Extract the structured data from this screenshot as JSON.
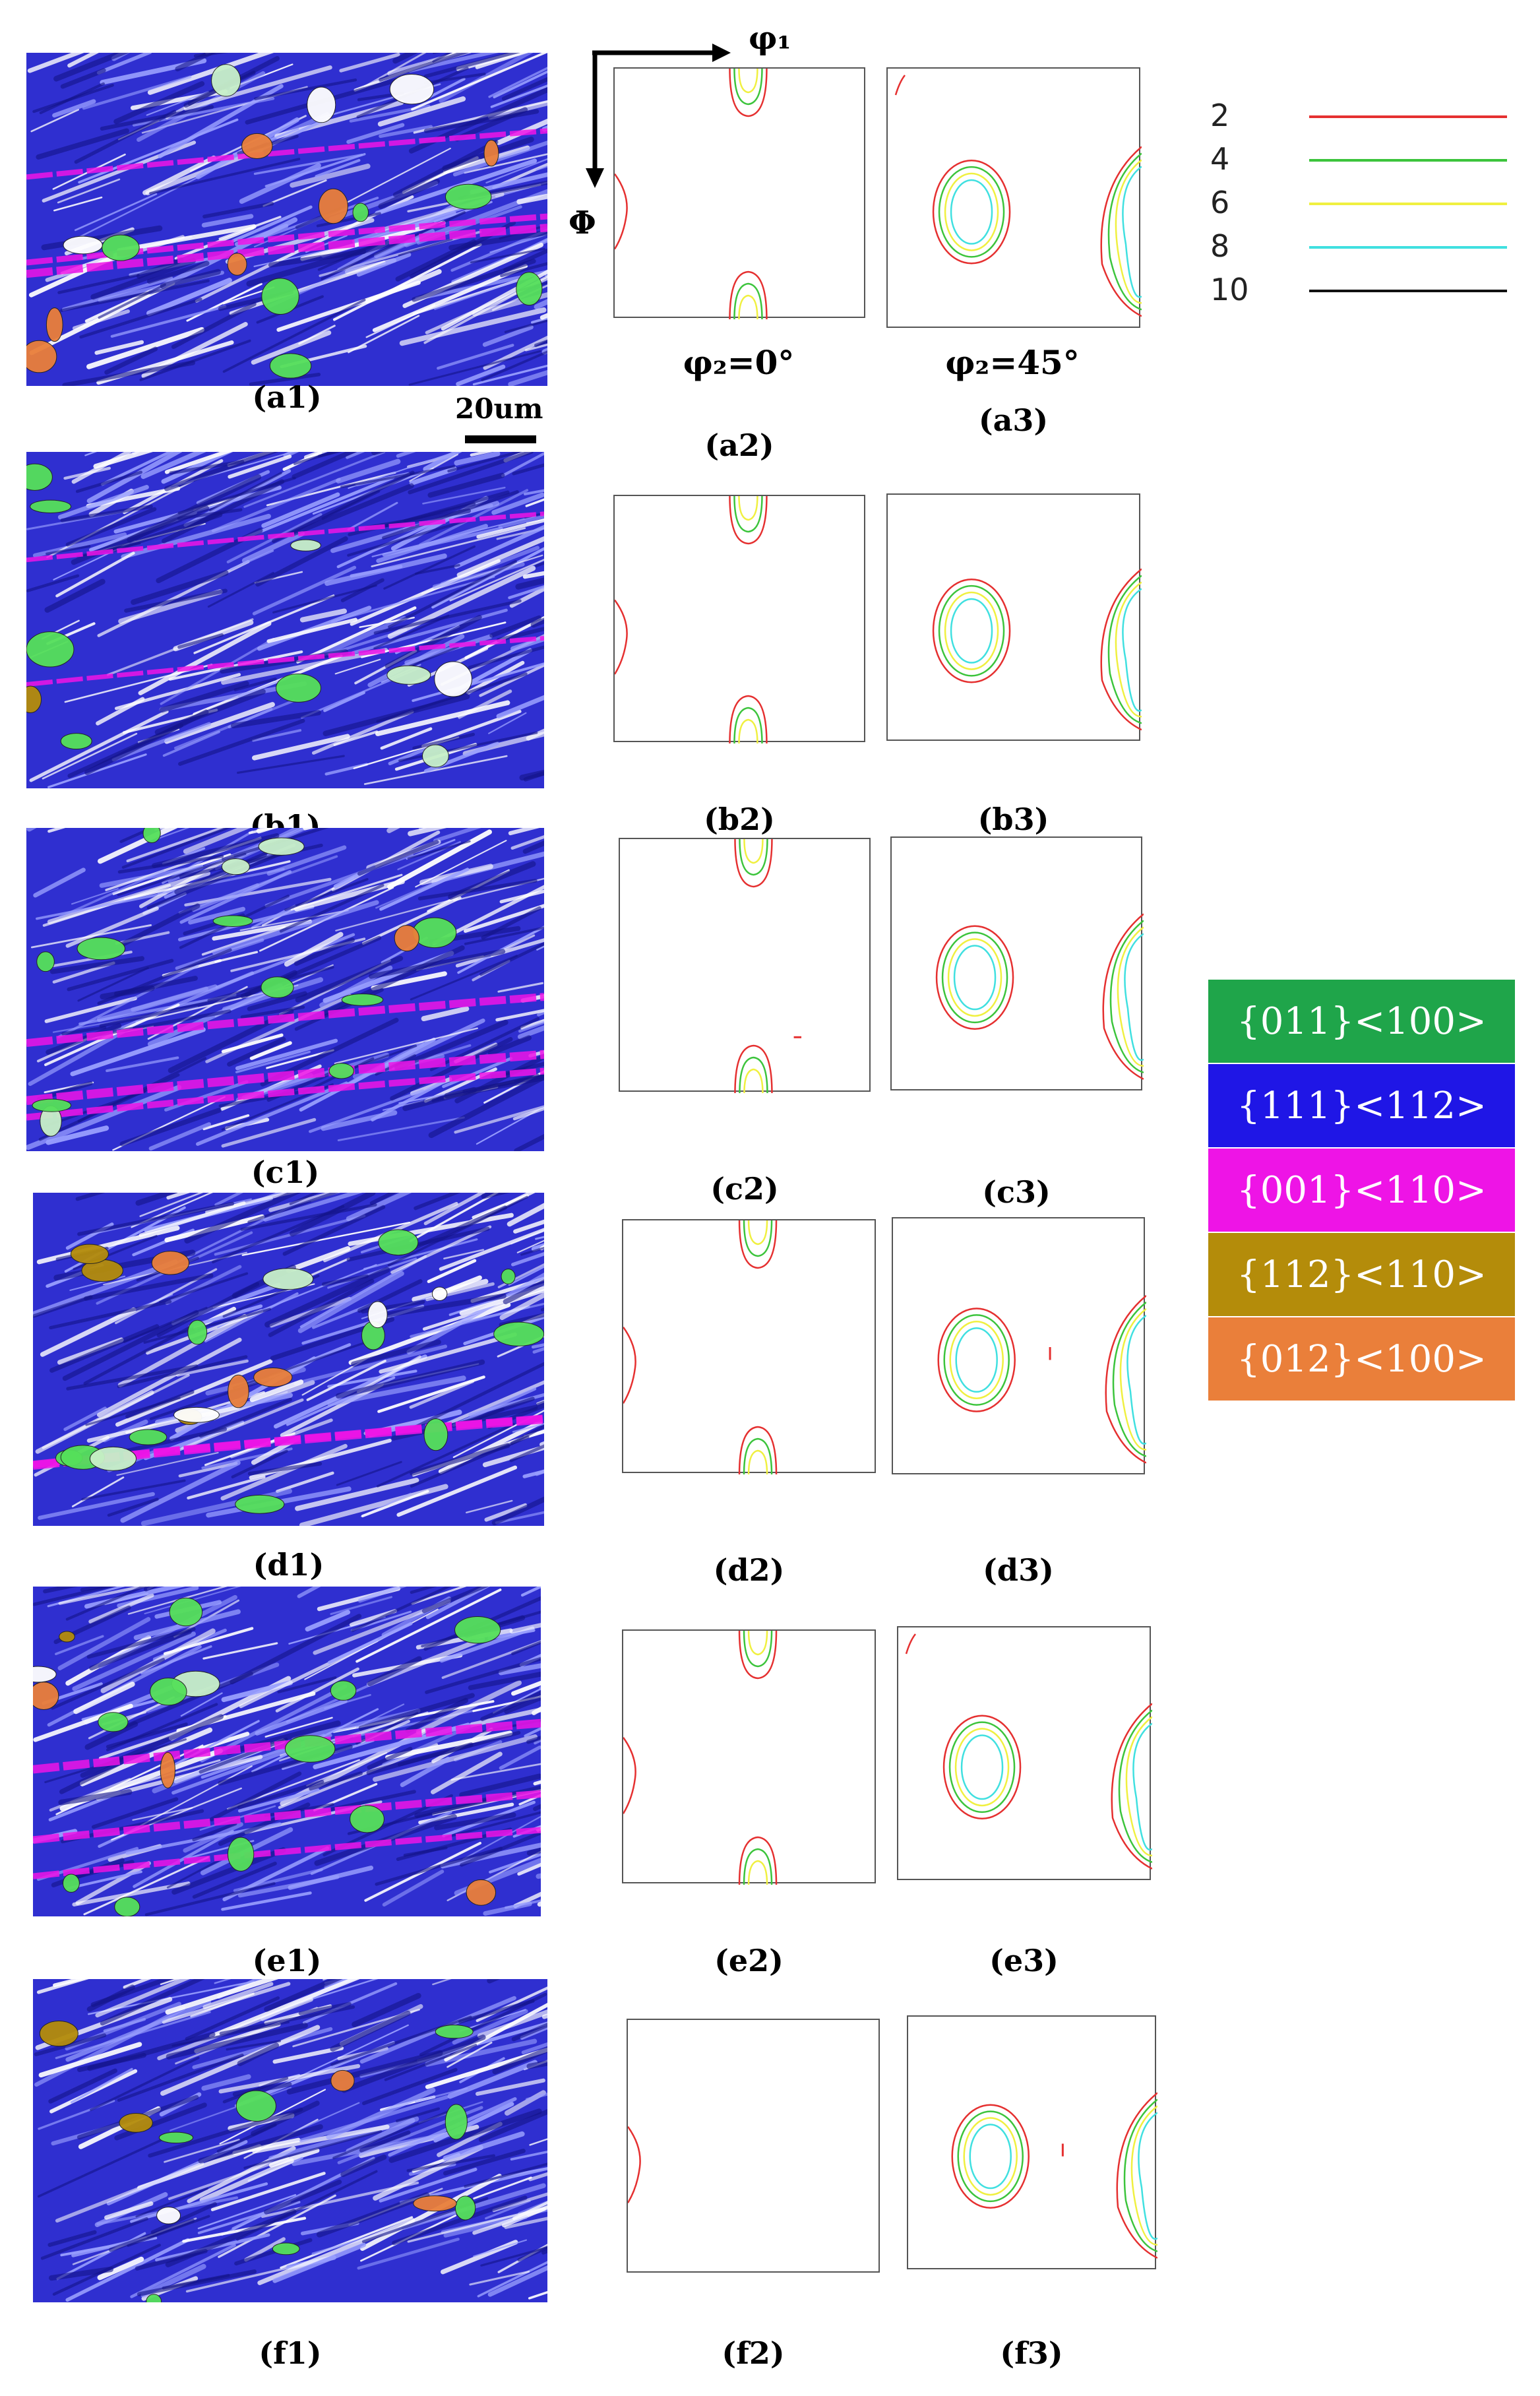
{
  "axes": {
    "phi1": "φ₁",
    "Phi": "Φ"
  },
  "sections": {
    "phi2_0": "φ₂=0°",
    "phi2_45": "φ₂=45°"
  },
  "scale_bar": "20um",
  "contour_legend": [
    {
      "level": "2",
      "color": "#e53030"
    },
    {
      "level": "4",
      "color": "#3cc43c"
    },
    {
      "level": "6",
      "color": "#f0f040"
    },
    {
      "level": "8",
      "color": "#40e0e0"
    },
    {
      "level": "10",
      "color": "#111111"
    }
  ],
  "texture_legend": [
    {
      "label": "{011}<100>",
      "color": "#1fa54a"
    },
    {
      "label": "{111}<112>",
      "color": "#1f16e6"
    },
    {
      "label": "{001}<110>",
      "color": "#ee14e6"
    },
    {
      "label": "{112}<110>",
      "color": "#b48c0a"
    },
    {
      "label": "{012}<100>",
      "color": "#ea7f3a"
    }
  ],
  "rows": [
    {
      "labels": [
        "(a1)",
        "(a2)",
        "(a3)"
      ]
    },
    {
      "labels": [
        "(b1)",
        "(b2)",
        "(b3)"
      ]
    },
    {
      "labels": [
        "(c1)",
        "(c2)",
        "(c3)"
      ]
    },
    {
      "labels": [
        "(d1)",
        "(d2)",
        "(d3)"
      ]
    },
    {
      "labels": [
        "(e1)",
        "(e2)",
        "(e3)"
      ]
    },
    {
      "labels": [
        "(f1)",
        "(f2)",
        "(f3)"
      ]
    }
  ]
}
